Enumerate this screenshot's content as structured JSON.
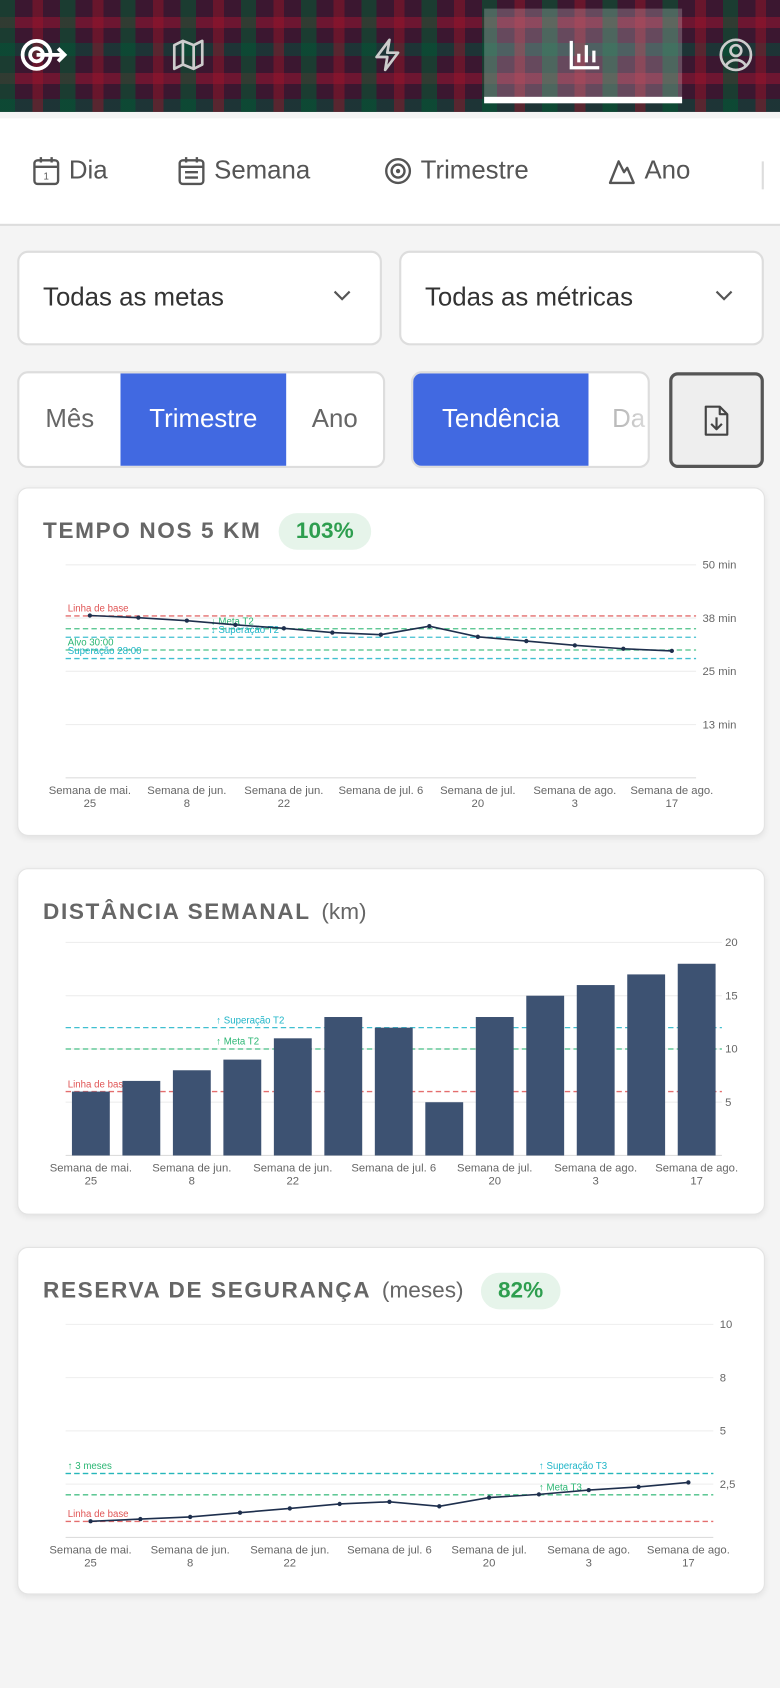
{
  "tabs": [
    "Dia",
    "Semana",
    "Trimestre",
    "Ano"
  ],
  "filters": [
    "Todas as metas",
    "Todas as métricas"
  ],
  "period": [
    "Mês",
    "Trimestre",
    "Ano"
  ],
  "view": [
    "Tendência",
    "Da"
  ],
  "chart_data": [
    {
      "type": "line",
      "title": "TEMPO NOS 5 KM",
      "badge": "103%",
      "categories": [
        "Semana de mai. 25",
        null,
        "Semana de jun. 8",
        null,
        "Semana de jun. 22",
        null,
        "Semana de jul. 6",
        null,
        "Semana de jul. 20",
        null,
        "Semana de ago. 3",
        null,
        "Semana de ago. 17"
      ],
      "values": [
        38.1,
        37.6,
        36.9,
        35.9,
        35.1,
        34.1,
        33.6,
        35.6,
        33.1,
        32.1,
        31.1,
        30.3,
        29.8
      ],
      "color": "#1e2f4d",
      "ylim": [
        0,
        50
      ],
      "yticks": [
        {
          "value": 12.5,
          "label": "13 min"
        },
        {
          "value": 25,
          "label": "25 min"
        },
        {
          "value": 37.5,
          "label": "38 min"
        },
        {
          "value": 50,
          "label": "50 min"
        }
      ],
      "grid": true,
      "reference_lines": [
        {
          "label": "Linha de base",
          "value": 38,
          "color": "#e05555"
        },
        {
          "label": "↓ Meta T2",
          "value": 35,
          "color": "#2bb673"
        },
        {
          "label": "↓ Superação T2",
          "value": 33,
          "color": "#1fb5c8"
        },
        {
          "label": "Alvo 30:00",
          "value": 30,
          "color": "#2bb673"
        },
        {
          "label": "Superação 28:00",
          "value": 28,
          "color": "#1fb5c8"
        }
      ]
    },
    {
      "type": "bar",
      "title": "DISTÂNCIA SEMANAL",
      "unit": "(km)",
      "categories": [
        "Semana de mai. 25",
        null,
        "Semana de jun. 8",
        null,
        "Semana de jun. 22",
        null,
        "Semana de jul. 6",
        null,
        "Semana de jul. 20",
        null,
        "Semana de ago. 3",
        null,
        "Semana de ago. 17"
      ],
      "values": [
        6,
        7,
        8,
        9,
        11,
        13,
        12,
        5,
        13,
        15,
        16,
        17,
        18
      ],
      "color": "#3d5272",
      "ylim": [
        0,
        20
      ],
      "yticks": [
        5,
        10,
        15,
        20
      ],
      "grid": true,
      "reference_lines": [
        {
          "label": "↑ Superação T2",
          "value": 12,
          "color": "#1fb5c8"
        },
        {
          "label": "↑ Meta T2",
          "value": 10,
          "color": "#2bb673"
        },
        {
          "label": "Linha de base",
          "value": 6,
          "color": "#e05555"
        }
      ]
    },
    {
      "type": "line",
      "title": "RESERVA DE SEGURANÇA",
      "unit": "(meses)",
      "badge": "82%",
      "categories": [
        "Semana de mai. 25",
        null,
        "Semana de jun. 8",
        null,
        "Semana de jun. 22",
        null,
        "Semana de jul. 6",
        null,
        "Semana de jul. 20",
        null,
        "Semana de ago. 3",
        null,
        "Semana de ago. 17"
      ],
      "values": [
        0.76,
        0.86,
        0.96,
        1.16,
        1.36,
        1.57,
        1.67,
        1.46,
        1.87,
        2.02,
        2.22,
        2.37,
        2.58
      ],
      "color": "#1e2f4d",
      "ylim": [
        0,
        10
      ],
      "yticks": [
        {
          "value": 2.5,
          "label": "2,5"
        },
        5,
        {
          "value": 7.5,
          "label": "8"
        },
        10
      ],
      "grid": true,
      "reference_lines": [
        {
          "label": "↑ 3 meses",
          "value": 3,
          "color": "#2bb673"
        },
        {
          "label": "↑ Superação T3",
          "value": 3,
          "color": "#1fb5c8"
        },
        {
          "label": "↑ Meta T3",
          "value": 2,
          "color": "#2bb673"
        },
        {
          "label": "Linha de base",
          "value": 0.75,
          "color": "#e05555"
        }
      ]
    }
  ]
}
